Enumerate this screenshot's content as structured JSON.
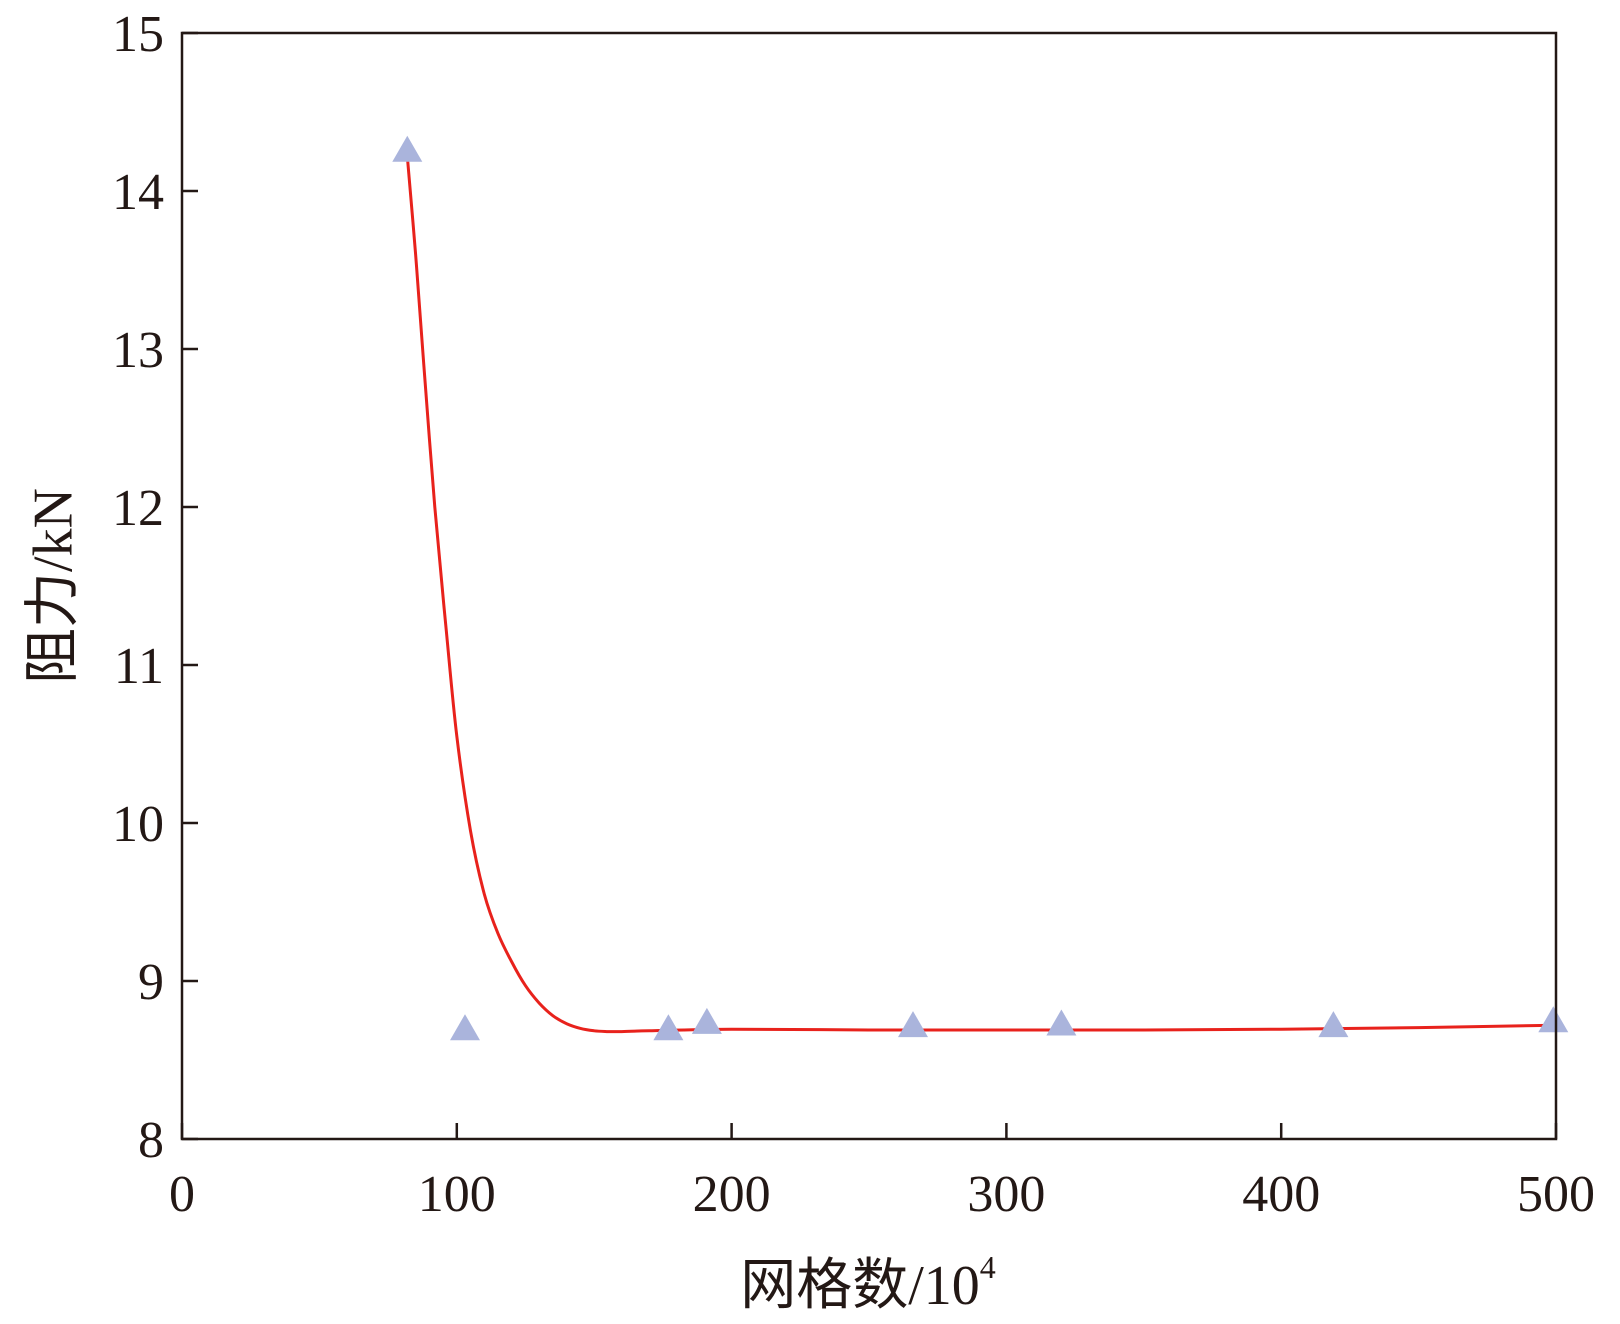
{
  "chart_data": {
    "type": "scatter",
    "title": "",
    "xlabel": "网格数/10",
    "xlabel_superscript": "4",
    "ylabel": "阻力/kN",
    "xlim": [
      0,
      500
    ],
    "ylim": [
      8,
      15
    ],
    "x_ticks": [
      0,
      100,
      200,
      300,
      400,
      500
    ],
    "y_ticks": [
      8,
      9,
      10,
      11,
      12,
      13,
      14,
      15
    ],
    "grid": false,
    "legend": "none",
    "series": [
      {
        "marker": "triangle",
        "color": "#aab4dc",
        "x": [
          82,
          103,
          177,
          191,
          266,
          320,
          419,
          499
        ],
        "y": [
          14.24,
          8.68,
          8.68,
          8.72,
          8.7,
          8.71,
          8.7,
          8.73
        ]
      }
    ],
    "fit_curve": {
      "type": "line",
      "color": "#e8221c",
      "x": [
        82,
        85,
        88,
        92,
        96,
        100,
        105,
        110,
        115,
        120,
        125,
        130,
        135,
        140,
        145,
        150,
        155,
        160,
        170,
        200,
        250,
        300,
        350,
        400,
        450,
        500
      ],
      "y": [
        14.22,
        13.6,
        12.9,
        12.0,
        11.25,
        10.55,
        9.95,
        9.55,
        9.3,
        9.12,
        8.97,
        8.86,
        8.78,
        8.73,
        8.7,
        8.685,
        8.68,
        8.68,
        8.685,
        8.695,
        8.69,
        8.69,
        8.69,
        8.695,
        8.705,
        8.72
      ]
    }
  }
}
